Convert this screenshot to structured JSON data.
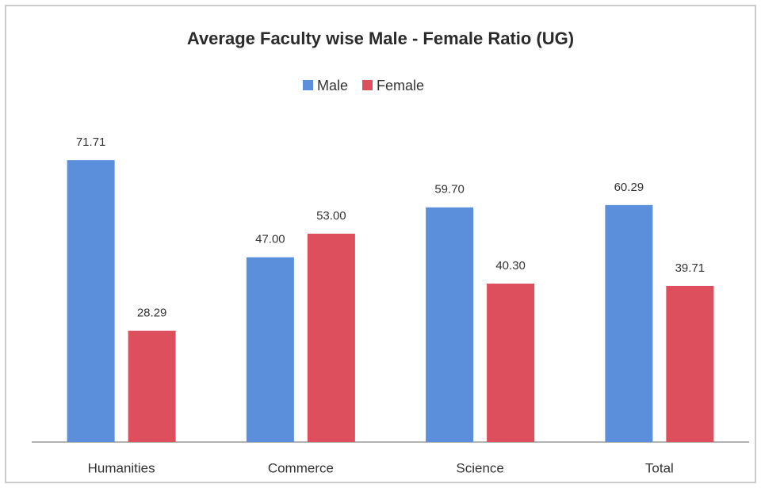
{
  "chart_data": {
    "type": "bar",
    "title": "Average Faculty wise Male - Female Ratio (UG)",
    "categories": [
      "Humanities",
      "Commerce",
      "Science",
      "Total"
    ],
    "series": [
      {
        "name": "Male",
        "color": "#5b8fdc",
        "values": [
          71.71,
          47,
          59.7,
          60.29
        ],
        "value_labels": [
          "71.71",
          "47.00",
          "59.70",
          "60.29"
        ]
      },
      {
        "name": "Female",
        "color": "#de4f5d",
        "values": [
          28.29,
          53,
          40.3,
          39.71
        ],
        "value_labels": [
          "28.29",
          "53.00",
          "40.30",
          "39.71"
        ]
      }
    ],
    "ylim": [
      0,
      80
    ],
    "legend": "top"
  }
}
